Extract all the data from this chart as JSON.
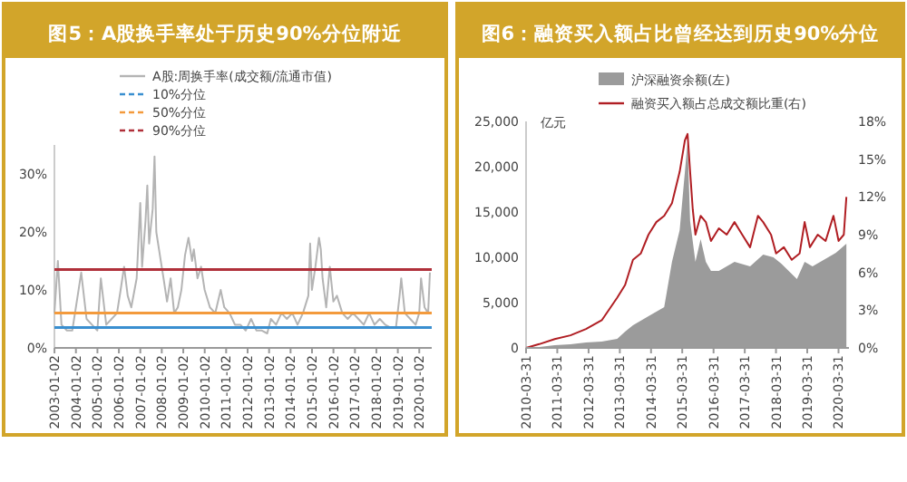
{
  "chart_data": [
    {
      "type": "line",
      "title": "图5：A股换手率处于历史90%分位附近",
      "xlim": [
        "2003-01-01",
        "2020-08-01"
      ],
      "xticks": [
        "2003-01-02",
        "2004-01-02",
        "2005-01-02",
        "2006-01-02",
        "2007-01-02",
        "2008-01-02",
        "2009-01-02",
        "2010-01-02",
        "2011-01-02",
        "2012-01-02",
        "2013-01-02",
        "2014-01-02",
        "2015-01-02",
        "2016-01-02",
        "2017-01-02",
        "2018-01-02",
        "2019-01-02",
        "2020-01-02"
      ],
      "ylim": [
        0,
        35
      ],
      "yticks": [
        {
          "value": 0,
          "label": "0%"
        },
        {
          "value": 10,
          "label": "10%"
        },
        {
          "value": 20,
          "label": "20%"
        },
        {
          "value": 30,
          "label": "30%"
        }
      ],
      "legend": "top",
      "grid": false,
      "series": [
        {
          "name": "A股:周换手率(成交额/流通市值)",
          "color": "#b4b4b4",
          "x": [
            "2003-01",
            "2003-03",
            "2003-05",
            "2003-08",
            "2003-11",
            "2004-02",
            "2004-04",
            "2004-07",
            "2004-10",
            "2005-01",
            "2005-03",
            "2005-06",
            "2005-09",
            "2005-12",
            "2006-02",
            "2006-04",
            "2006-06",
            "2006-08",
            "2006-11",
            "2007-01",
            "2007-02",
            "2007-04",
            "2007-05",
            "2007-06",
            "2007-08",
            "2007-09",
            "2007-10",
            "2007-12",
            "2008-02",
            "2008-04",
            "2008-06",
            "2008-08",
            "2008-10",
            "2008-12",
            "2009-02",
            "2009-04",
            "2009-06",
            "2009-07",
            "2009-09",
            "2009-11",
            "2010-01",
            "2010-04",
            "2010-07",
            "2010-10",
            "2010-12",
            "2011-03",
            "2011-06",
            "2011-09",
            "2011-12",
            "2012-03",
            "2012-06",
            "2012-09",
            "2012-12",
            "2013-02",
            "2013-05",
            "2013-08",
            "2013-11",
            "2014-02",
            "2014-05",
            "2014-08",
            "2014-11",
            "2014-12",
            "2015-01",
            "2015-03",
            "2015-05",
            "2015-06",
            "2015-07",
            "2015-09",
            "2015-11",
            "2016-01",
            "2016-03",
            "2016-06",
            "2016-09",
            "2016-12",
            "2017-03",
            "2017-06",
            "2017-09",
            "2017-12",
            "2018-03",
            "2018-06",
            "2018-09",
            "2018-12",
            "2019-02",
            "2019-03",
            "2019-05",
            "2019-08",
            "2019-11",
            "2020-01",
            "2020-02",
            "2020-04",
            "2020-06",
            "2020-07"
          ],
          "values": [
            6,
            15,
            4,
            3,
            3,
            9,
            13,
            5,
            4,
            3,
            12,
            4,
            5,
            6,
            10,
            14,
            9,
            7,
            12,
            25,
            14,
            22,
            28,
            18,
            24,
            33,
            20,
            16,
            12,
            8,
            12,
            6,
            7,
            10,
            16,
            19,
            15,
            17,
            12,
            14,
            10,
            7,
            6,
            10,
            7,
            6,
            4,
            4,
            3,
            5,
            3,
            3,
            2.5,
            5,
            4,
            6,
            5,
            6,
            4,
            6,
            9,
            18,
            10,
            14,
            19,
            17,
            12,
            7,
            14,
            8,
            9,
            6,
            5,
            6,
            5,
            4,
            6,
            4,
            5,
            4,
            3.5,
            3.5,
            9,
            12,
            6,
            5,
            4,
            6,
            12,
            7,
            6,
            13
          ]
        }
      ],
      "ref_lines": [
        {
          "axis": "y",
          "value": 3.5,
          "label": "10%分位",
          "color": "#3a8fd0"
        },
        {
          "axis": "y",
          "value": 6,
          "label": "50%分位",
          "color": "#f39a3c"
        },
        {
          "axis": "y",
          "value": 13.5,
          "label": "90%分位",
          "color": "#b0303a"
        }
      ]
    },
    {
      "type": "area",
      "title": "图6：融资买入额占比曾经达到历史90%分位",
      "ylabel": "亿元",
      "xlim": [
        "2010-03-31",
        "2020-07-31"
      ],
      "xticks": [
        "2010-03-31",
        "2011-03-31",
        "2012-03-31",
        "2013-03-31",
        "2014-03-31",
        "2015-03-31",
        "2016-03-31",
        "2017-03-31",
        "2018-03-31",
        "2019-03-31",
        "2020-03-31"
      ],
      "ylim": [
        0,
        25000
      ],
      "yticks": [
        0,
        {
          "value": 5000,
          "label": "5,000"
        },
        {
          "value": 10000,
          "label": "10,000"
        },
        {
          "value": 15000,
          "label": "15,000"
        },
        {
          "value": 20000,
          "label": "20,000"
        },
        {
          "value": 25000,
          "label": "25,000"
        }
      ],
      "y2lim": [
        0,
        18
      ],
      "y2ticks": [
        {
          "value": 0,
          "label": "0%"
        },
        {
          "value": 3,
          "label": "3%"
        },
        {
          "value": 6,
          "label": "6%"
        },
        {
          "value": 9,
          "label": "9%"
        },
        {
          "value": 12,
          "label": "12%"
        },
        {
          "value": 15,
          "label": "15%"
        },
        {
          "value": 18,
          "label": "18%"
        }
      ],
      "legend": "top",
      "grid": false,
      "series": [
        {
          "name": "沪深融资余额(左)",
          "color": "#9b9b9b",
          "axis": "y",
          "x": [
            "2010-03-31",
            "2010-09",
            "2011-03",
            "2011-09",
            "2012-03",
            "2012-09",
            "2013-03",
            "2013-06",
            "2013-09",
            "2014-03",
            "2014-06",
            "2014-09",
            "2014-12",
            "2015-03",
            "2015-06",
            "2015-07",
            "2015-09",
            "2015-11",
            "2016-01",
            "2016-03",
            "2016-06",
            "2016-12",
            "2017-06",
            "2017-11",
            "2018-03",
            "2018-06",
            "2018-12",
            "2019-03",
            "2019-06",
            "2019-12",
            "2020-03",
            "2020-07"
          ],
          "values": [
            0,
            100,
            300,
            400,
            600,
            700,
            1000,
            1800,
            2500,
            3500,
            4000,
            4500,
            9500,
            13000,
            22700,
            14000,
            9500,
            12000,
            9500,
            8500,
            8500,
            9500,
            9000,
            10300,
            10000,
            9300,
            7600,
            9500,
            9000,
            10000,
            10500,
            11500
          ]
        },
        {
          "name": "融资买入额占总成交额比重(右)",
          "color": "#b01e23",
          "type": "line",
          "axis": "y2",
          "x": [
            "2010-03-31",
            "2010-09",
            "2011-03",
            "2011-09",
            "2012-03",
            "2012-09",
            "2013-03",
            "2013-06",
            "2013-09",
            "2013-12",
            "2014-03",
            "2014-06",
            "2014-09",
            "2014-12",
            "2015-03",
            "2015-05",
            "2015-06",
            "2015-07",
            "2015-08",
            "2015-09",
            "2015-11",
            "2016-01",
            "2016-03",
            "2016-06",
            "2016-09",
            "2016-12",
            "2017-03",
            "2017-06",
            "2017-09",
            "2017-11",
            "2018-02",
            "2018-04",
            "2018-07",
            "2018-10",
            "2019-01",
            "2019-03",
            "2019-05",
            "2019-08",
            "2019-11",
            "2020-02",
            "2020-04",
            "2020-06",
            "2020-07"
          ],
          "values": [
            0,
            0.3,
            0.7,
            1,
            1.5,
            2.2,
            4,
            5,
            7,
            7.5,
            9,
            10,
            10.5,
            11.5,
            14,
            16.5,
            17,
            14,
            11,
            9,
            10.5,
            10,
            8.5,
            9.5,
            9,
            10,
            9,
            8,
            10.5,
            10,
            9,
            7.5,
            8,
            7,
            7.5,
            10,
            8,
            9,
            8.5,
            10.5,
            8.5,
            9,
            12
          ]
        }
      ]
    }
  ]
}
